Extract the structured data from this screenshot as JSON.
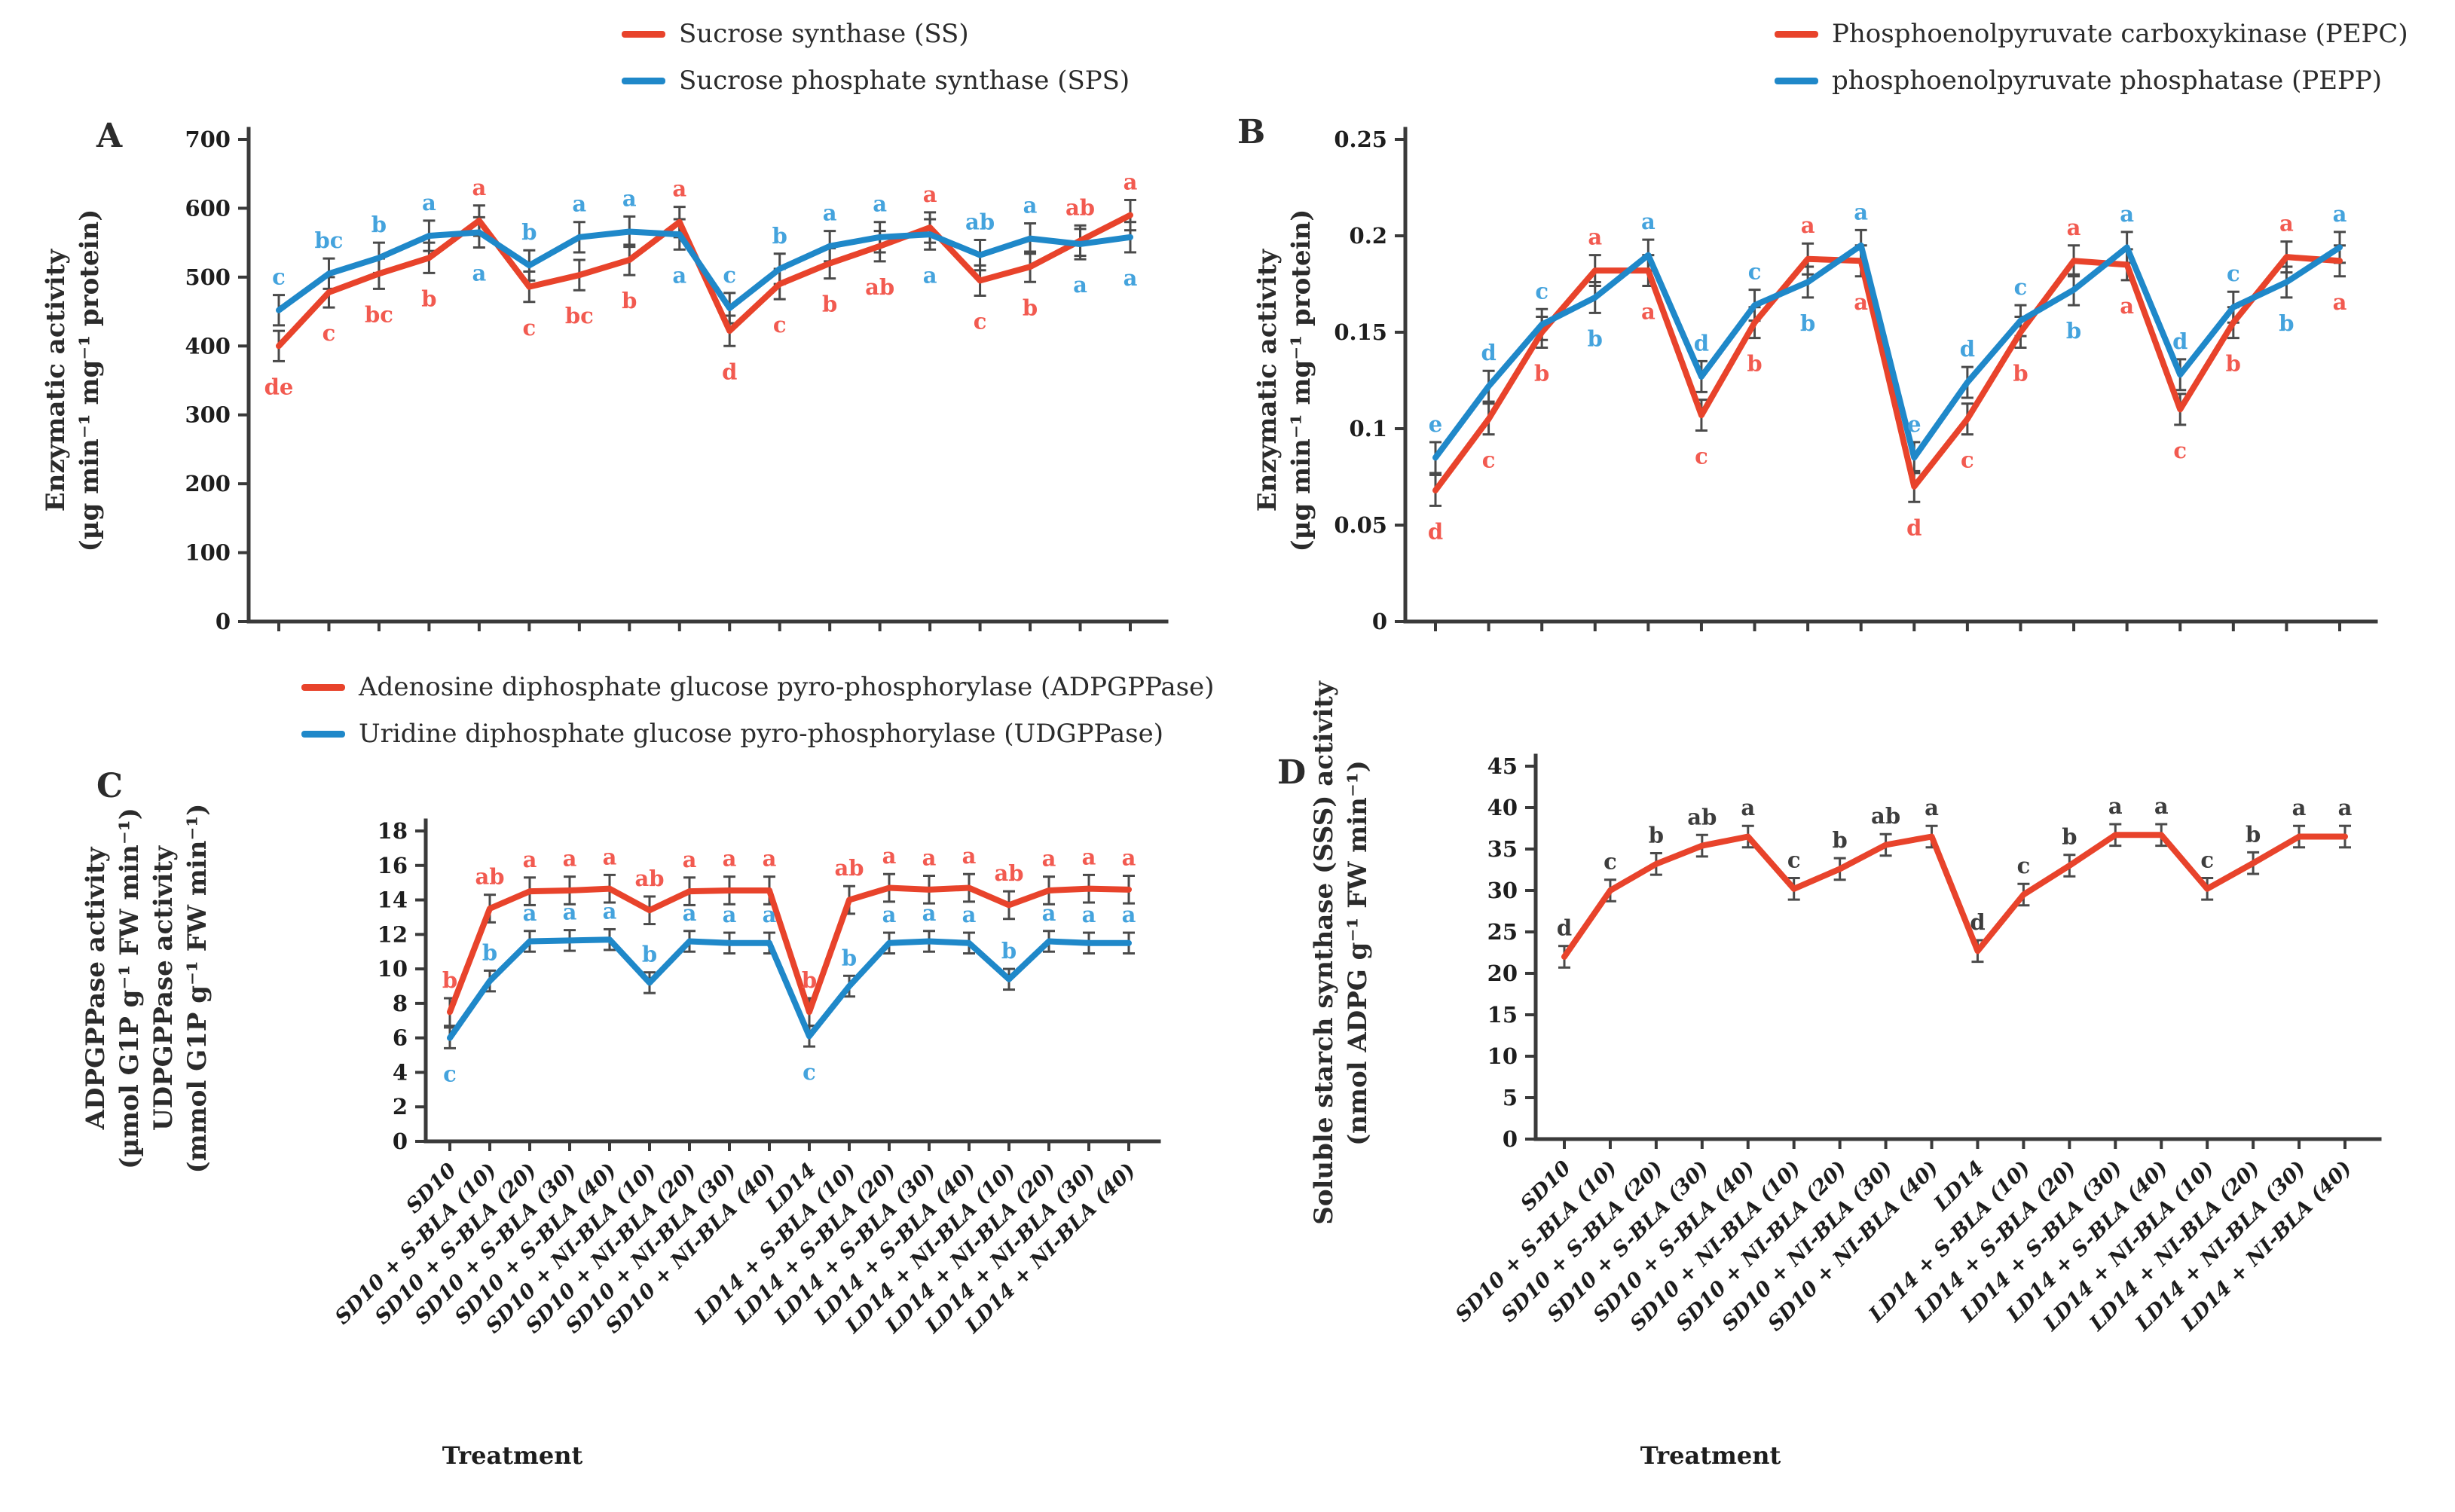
{
  "figure": {
    "background": "#ffffff",
    "xlabel": "Treatment"
  },
  "colors": {
    "axis": "#3a3a3a",
    "error_bar": "#4a4a4a",
    "red_line": "#e8432b",
    "blue_line": "#1f88c9",
    "red_letter": "#f25a50",
    "blue_letter": "#44a3dd",
    "dark_letter": "#3d3d3d"
  },
  "categories": [
    "SD10",
    "SD10 + S-BLA (10)",
    "SD10 + S-BLA (20)",
    "SD10 + S-BLA (30)",
    "SD10 + S-BLA (40)",
    "SD10 + NI-BLA (10)",
    "SD10 + NI-BLA (20)",
    "SD10 + NI-BLA (30)",
    "SD10 + NI-BLA (40)",
    "LD14",
    "LD14 + S-BLA (10)",
    "LD14 + S-BLA (20)",
    "LD14 + S-BLA (30)",
    "LD14 + S-BLA (40)",
    "LD14 + NI-BLA (10)",
    "LD14 + NI-BLA (20)",
    "LD14 + NI-BLA (30)",
    "LD14 + NI-BLA (40)"
  ],
  "chart_data": [
    {
      "type": "line",
      "panel": "A",
      "title": "",
      "xlabel": "",
      "x_tick_labels_visible": false,
      "legend_position": "top-center",
      "grid": false,
      "ylabel_lines": [
        "Enzymatic activity",
        "(µg min⁻¹ mg⁻¹ protein)"
      ],
      "ylim": [
        0,
        700
      ],
      "yticks": [
        0,
        100,
        200,
        300,
        400,
        500,
        600,
        700
      ],
      "ytick_labels": [
        "0",
        "100",
        "200",
        "300",
        "400",
        "500",
        "600",
        "700"
      ],
      "categories": [
        "SD10",
        "SD10 + S-BLA (10)",
        "SD10 + S-BLA (20)",
        "SD10 + S-BLA (30)",
        "SD10 + S-BLA (40)",
        "SD10 + NI-BLA (10)",
        "SD10 + NI-BLA (20)",
        "SD10 + NI-BLA (30)",
        "SD10 + NI-BLA (40)",
        "LD14",
        "LD14 + S-BLA (10)",
        "LD14 + S-BLA (20)",
        "LD14 + S-BLA (30)",
        "LD14 + S-BLA (40)",
        "LD14 + NI-BLA (10)",
        "LD14 + NI-BLA (20)",
        "LD14 + NI-BLA (30)",
        "LD14 + NI-BLA (40)"
      ],
      "series": [
        {
          "name": "Sucrose synthase (SS)",
          "color": "#e8432b",
          "letter_color": "#f25a50",
          "err": 22,
          "values": [
            400,
            478,
            505,
            528,
            582,
            486,
            503,
            525,
            580,
            422,
            490,
            520,
            545,
            572,
            495,
            515,
            553,
            590
          ],
          "letters": [
            "de",
            "c",
            "bc",
            "b",
            "a",
            "c",
            "bc",
            "b",
            "a",
            "d",
            "c",
            "b",
            "ab",
            "a",
            "c",
            "b",
            "ab",
            "a"
          ]
        },
        {
          "name": "Sucrose phosphate synthase (SPS)",
          "color": "#1f88c9",
          "letter_color": "#44a3dd",
          "err": 22,
          "values": [
            452,
            505,
            528,
            560,
            565,
            517,
            558,
            566,
            562,
            455,
            512,
            545,
            558,
            562,
            532,
            556,
            548,
            558
          ],
          "letters": [
            "c",
            "bc",
            "b",
            "a",
            "a",
            "b",
            "a",
            "a",
            "a",
            "c",
            "b",
            "a",
            "a",
            "a",
            "ab",
            "a",
            "a",
            "a"
          ]
        }
      ]
    },
    {
      "type": "line",
      "panel": "B",
      "title": "",
      "xlabel": "",
      "x_tick_labels_visible": false,
      "legend_position": "top-center",
      "grid": false,
      "ylabel_lines": [
        "Enzymatic activity",
        "(µg min⁻¹ mg⁻¹ protein)"
      ],
      "ylim": [
        0,
        0.25
      ],
      "yticks": [
        0,
        0.05,
        0.1,
        0.15,
        0.2,
        0.25
      ],
      "ytick_labels": [
        "0",
        "0.05",
        "0.1",
        "0.15",
        "0.2",
        "0.25"
      ],
      "categories": [
        "SD10",
        "SD10 + S-BLA (10)",
        "SD10 + S-BLA (20)",
        "SD10 + S-BLA (30)",
        "SD10 + S-BLA (40)",
        "SD10 + NI-BLA (10)",
        "SD10 + NI-BLA (20)",
        "SD10 + NI-BLA (30)",
        "SD10 + NI-BLA (40)",
        "LD14",
        "LD14 + S-BLA (10)",
        "LD14 + S-BLA (20)",
        "LD14 + S-BLA (30)",
        "LD14 + S-BLA (40)",
        "LD14 + NI-BLA (10)",
        "LD14 + NI-BLA (20)",
        "LD14 + NI-BLA (30)",
        "LD14 + NI-BLA (40)"
      ],
      "series": [
        {
          "name": "Phosphoenolpyruvate carboxykinase (PEPC)",
          "color": "#e8432b",
          "letter_color": "#f25a50",
          "err": 0.008,
          "values": [
            0.068,
            0.105,
            0.15,
            0.182,
            0.182,
            0.107,
            0.155,
            0.188,
            0.187,
            0.07,
            0.105,
            0.15,
            0.187,
            0.185,
            0.11,
            0.155,
            0.189,
            0.187
          ],
          "letters": [
            "d",
            "c",
            "b",
            "a",
            "a",
            "c",
            "b",
            "a",
            "a",
            "d",
            "c",
            "b",
            "a",
            "a",
            "c",
            "b",
            "a",
            "a"
          ]
        },
        {
          "name": "phosphoenolpyruvate phosphatase (PEPP)",
          "color": "#1f88c9",
          "letter_color": "#44a3dd",
          "err": 0.008,
          "values": [
            0.085,
            0.122,
            0.154,
            0.168,
            0.19,
            0.127,
            0.164,
            0.176,
            0.195,
            0.085,
            0.124,
            0.156,
            0.172,
            0.194,
            0.128,
            0.163,
            0.176,
            0.194
          ],
          "letters": [
            "e",
            "d",
            "c",
            "b",
            "a",
            "d",
            "c",
            "b",
            "a",
            "e",
            "d",
            "c",
            "b",
            "a",
            "d",
            "c",
            "b",
            "a"
          ]
        }
      ]
    },
    {
      "type": "line",
      "panel": "C",
      "title": "",
      "xlabel": "Treatment",
      "x_tick_labels_visible": true,
      "legend_position": "top",
      "grid": false,
      "ylabel_lines": [
        "ADPGPPase activity",
        "(µmol G1P g⁻¹ FW min⁻¹)",
        "UDPGPPase activity",
        "(mmol G1P g⁻¹ FW min⁻¹)"
      ],
      "ylim": [
        0,
        18
      ],
      "yticks": [
        0,
        2,
        4,
        6,
        8,
        10,
        12,
        14,
        16,
        18
      ],
      "ytick_labels": [
        "0",
        "2",
        "4",
        "6",
        "8",
        "10",
        "12",
        "14",
        "16",
        "18"
      ],
      "categories": [
        "SD10",
        "SD10 + S-BLA (10)",
        "SD10 + S-BLA (20)",
        "SD10 + S-BLA (30)",
        "SD10 + S-BLA (40)",
        "SD10 + NI-BLA (10)",
        "SD10 + NI-BLA (20)",
        "SD10 + NI-BLA (30)",
        "SD10 + NI-BLA (40)",
        "LD14",
        "LD14 + S-BLA (10)",
        "LD14 + S-BLA (20)",
        "LD14 + S-BLA (30)",
        "LD14 + S-BLA (40)",
        "LD14 + NI-BLA (10)",
        "LD14 + NI-BLA (20)",
        "LD14 + NI-BLA (30)",
        "LD14 + NI-BLA (40)"
      ],
      "series": [
        {
          "name": "Adenosine diphosphate glucose pyro-phosphorylase (ADPGPPase)",
          "color": "#e8432b",
          "letter_color": "#f25a50",
          "err": 0.8,
          "values": [
            7.5,
            13.5,
            14.5,
            14.55,
            14.65,
            13.4,
            14.5,
            14.55,
            14.55,
            7.5,
            14.0,
            14.7,
            14.6,
            14.7,
            13.7,
            14.55,
            14.65,
            14.6
          ],
          "letters": [
            "b",
            "ab",
            "a",
            "a",
            "a",
            "ab",
            "a",
            "a",
            "a",
            "b",
            "ab",
            "a",
            "a",
            "a",
            "ab",
            "a",
            "a",
            "a"
          ]
        },
        {
          "name": "Uridine diphosphate glucose pyro-phosphorylase (UDGPPase)",
          "color": "#1f88c9",
          "letter_color": "#44a3dd",
          "err": 0.6,
          "values": [
            6.0,
            9.3,
            11.6,
            11.65,
            11.7,
            9.2,
            11.6,
            11.5,
            11.5,
            6.1,
            9.0,
            11.5,
            11.6,
            11.5,
            9.4,
            11.6,
            11.5,
            11.5
          ],
          "letters": [
            "c",
            "b",
            "a",
            "a",
            "a",
            "b",
            "a",
            "a",
            "a",
            "c",
            "b",
            "a",
            "a",
            "a",
            "b",
            "a",
            "a",
            "a"
          ]
        }
      ]
    },
    {
      "type": "line",
      "panel": "D",
      "title": "",
      "xlabel": "Treatment",
      "x_tick_labels_visible": true,
      "legend_position": "none",
      "grid": false,
      "ylabel_lines": [
        "Soluble starch synthase (SSS) activity",
        "(nmol ADPG g⁻¹ FW min⁻¹)"
      ],
      "ylim": [
        0,
        45
      ],
      "yticks": [
        0,
        5,
        10,
        15,
        20,
        25,
        30,
        35,
        40,
        45
      ],
      "ytick_labels": [
        "0",
        "5",
        "10",
        "15",
        "20",
        "25",
        "30",
        "35",
        "40",
        "45"
      ],
      "categories": [
        "SD10",
        "SD10 + S-BLA (10)",
        "SD10 + S-BLA (20)",
        "SD10 + S-BLA (30)",
        "SD10 + S-BLA (40)",
        "SD10 + NI-BLA (10)",
        "SD10 + NI-BLA (20)",
        "SD10 + NI-BLA (30)",
        "SD10 + NI-BLA (40)",
        "LD14",
        "LD14 + S-BLA (10)",
        "LD14 + S-BLA (20)",
        "LD14 + S-BLA (30)",
        "LD14 + S-BLA (40)",
        "LD14 + NI-BLA (10)",
        "LD14 + NI-BLA (20)",
        "LD14 + NI-BLA (30)",
        "LD14 + NI-BLA (40)"
      ],
      "series": [
        {
          "name": "Soluble starch synthase (SSS)",
          "color": "#e8432b",
          "letter_color": "#3d3d3d",
          "err": 1.3,
          "values": [
            22,
            30,
            33.2,
            35.4,
            36.5,
            30.2,
            32.6,
            35.5,
            36.5,
            22.7,
            29.5,
            33,
            36.7,
            36.7,
            30.2,
            33.3,
            36.5,
            36.5
          ],
          "letters": [
            "d",
            "c",
            "b",
            "ab",
            "a",
            "c",
            "b",
            "ab",
            "a",
            "d",
            "c",
            "b",
            "a",
            "a",
            "c",
            "b",
            "a",
            "a"
          ]
        }
      ]
    }
  ]
}
